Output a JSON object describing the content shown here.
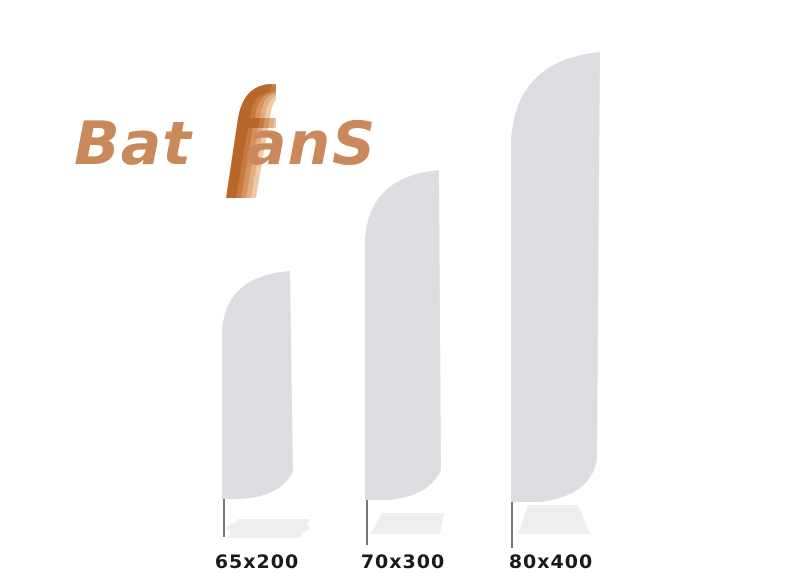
{
  "logo": {
    "part_bat": "Bat",
    "part_f": "f",
    "part_an": "an",
    "part_s": "S",
    "color": "#c9895a",
    "f_colors": [
      "#f0c9a6",
      "#e3ad80",
      "#d4935f",
      "#c77a3f",
      "#b9662a"
    ]
  },
  "flags": [
    {
      "label": "65x200",
      "height_cm": 200,
      "width_cm": 65
    },
    {
      "label": "70x300",
      "height_cm": 300,
      "width_cm": 70
    },
    {
      "label": "80x400",
      "height_cm": 400,
      "width_cm": 80
    }
  ],
  "colors": {
    "flag_fill": "#dcdde0",
    "pole": "#555555",
    "shadow": "#eeeeef"
  }
}
